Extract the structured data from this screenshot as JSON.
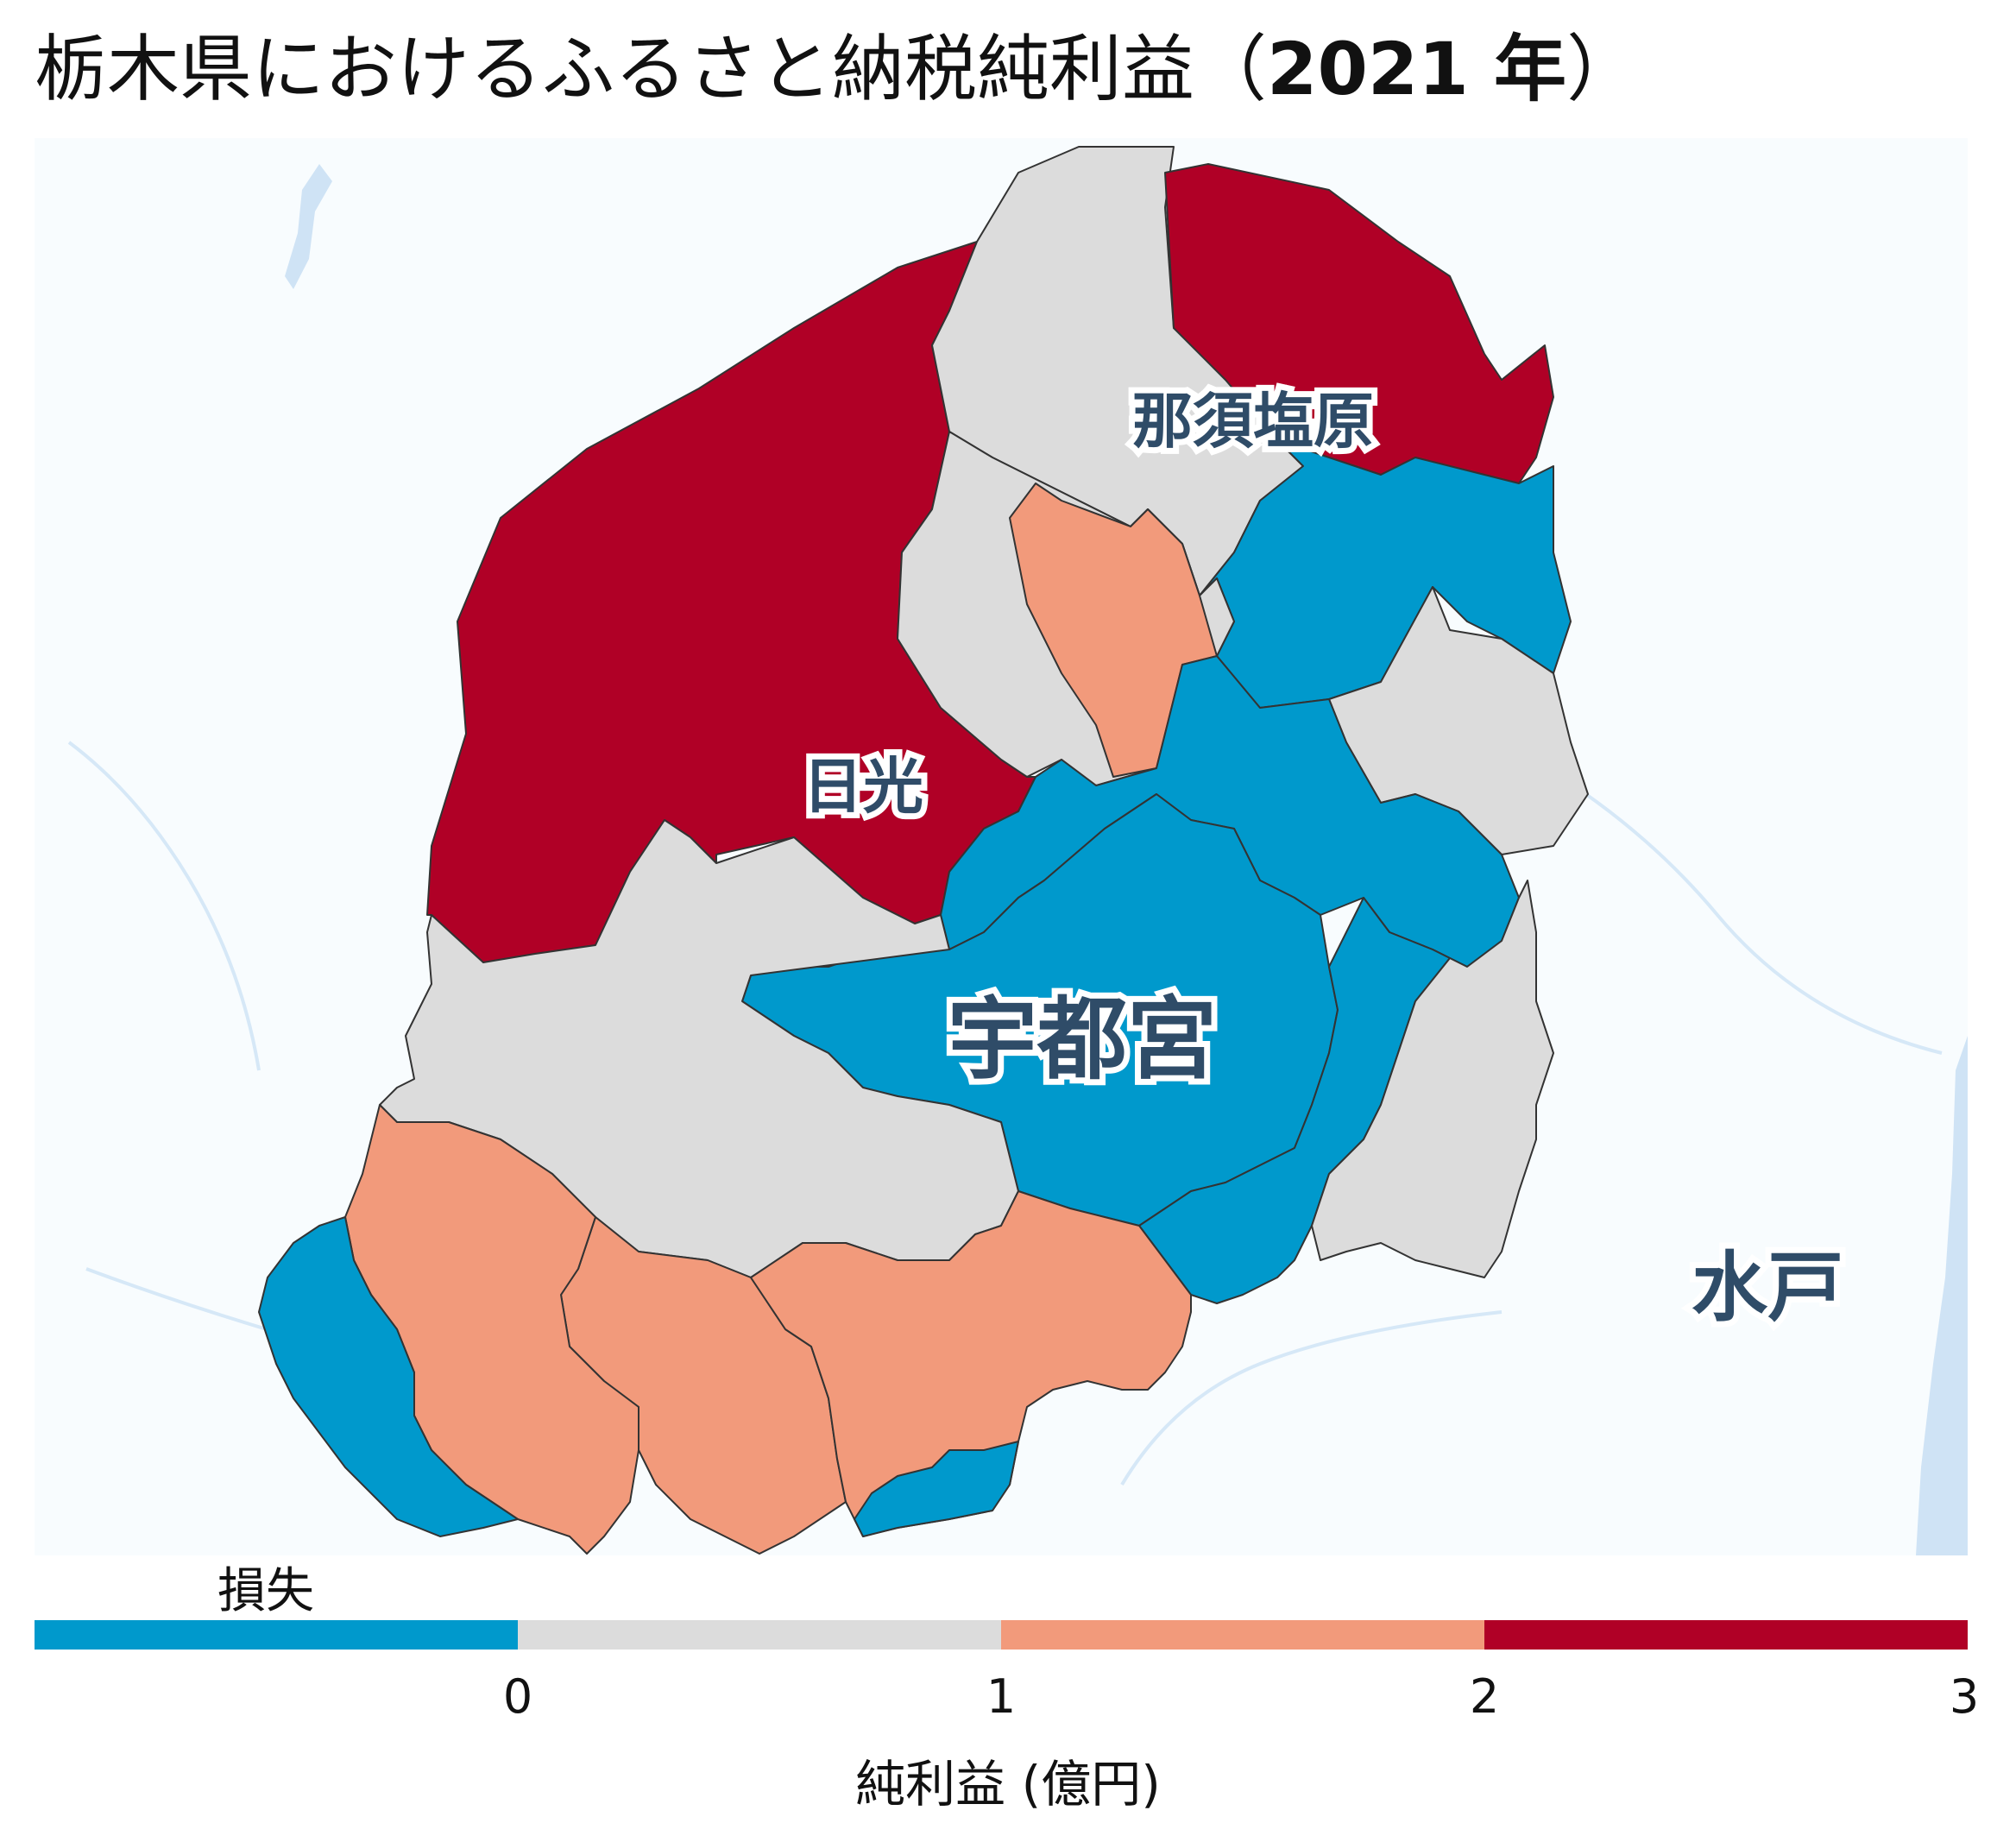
{
  "title": {
    "main": "栃木県におけるふるさと納税純利益（",
    "year": "2021 年",
    "close": "）"
  },
  "colors": {
    "loss": "#0099cc",
    "bin_0_1": "#dcdcdc",
    "bin_1_2": "#f29a7b",
    "bin_2_3": "#b00026",
    "background": "#f8fcfe",
    "water": "#cfe3f5"
  },
  "map": {
    "cities": {
      "nasushiobara": "那須塩原",
      "nikko": "日光",
      "utsunomiya": "宇都宮",
      "mito": "水戸"
    }
  },
  "legend": {
    "low_label": "損失",
    "ticks": [
      "0",
      "1",
      "2",
      "3"
    ],
    "axis_title": "純利益 (億円)",
    "bins": [
      {
        "label": "損失",
        "color": "#0099cc"
      },
      {
        "label": "0–1",
        "color": "#dcdcdc"
      },
      {
        "label": "1–2",
        "color": "#f29a7b"
      },
      {
        "label": "2–3",
        "color": "#b00026"
      }
    ]
  }
}
